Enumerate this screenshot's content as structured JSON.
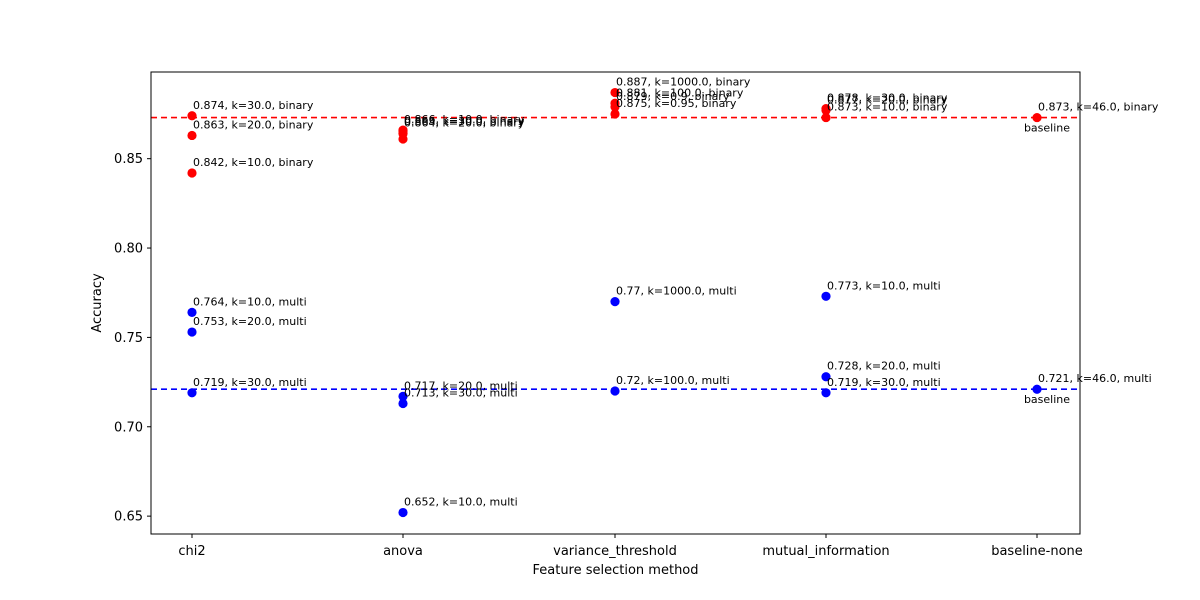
{
  "chart_data": {
    "type": "scatter",
    "title": "",
    "xlabel": "Feature selection method",
    "ylabel": "Accuracy",
    "categories": [
      "chi2",
      "anova",
      "variance_threshold",
      "mutual_information",
      "baseline-none"
    ],
    "ylim": [
      0.64,
      0.8985
    ],
    "yticks": [
      0.65,
      0.7,
      0.75,
      0.8,
      0.85
    ],
    "ytick_labels": [
      "0.65",
      "0.70",
      "0.75",
      "0.80",
      "0.85"
    ],
    "grid": false,
    "series": [
      {
        "color": "#ff0000",
        "points": [
          {
            "category": "chi2",
            "y": 0.874,
            "label": "0.874, k=30.0, binary"
          },
          {
            "category": "chi2",
            "y": 0.863,
            "label": "0.863, k=20.0, binary"
          },
          {
            "category": "chi2",
            "y": 0.842,
            "label": "0.842, k=10.0, binary"
          },
          {
            "category": "anova",
            "y": 0.866,
            "label": "0.866, k=10.0, binary"
          },
          {
            "category": "anova",
            "y": 0.865,
            "label": "0.865, k=30.0, binary"
          },
          {
            "category": "anova",
            "y": 0.864,
            "label": "0.864, k=20.0, binary"
          },
          {
            "category": "anova",
            "y": 0.861,
            "label": ""
          },
          {
            "category": "variance_threshold",
            "y": 0.887,
            "label": "0.887, k=1000.0, binary"
          },
          {
            "category": "variance_threshold",
            "y": 0.881,
            "label": "0.881, k=100.0, binary"
          },
          {
            "category": "variance_threshold",
            "y": 0.879,
            "label": "0.879, k=0.9, binary"
          },
          {
            "category": "variance_threshold",
            "y": 0.875,
            "label": "0.875, k=0.95, binary"
          },
          {
            "category": "mutual_information",
            "y": 0.878,
            "label": "0.878, k=30.0, binary"
          },
          {
            "category": "mutual_information",
            "y": 0.877,
            "label": "0.877, k=20.0, binary"
          },
          {
            "category": "mutual_information",
            "y": 0.873,
            "label": "0.873, k=10.0, binary"
          },
          {
            "category": "baseline-none",
            "y": 0.873,
            "label": "0.873, k=46.0, binary"
          }
        ]
      },
      {
        "color": "#0000ff",
        "points": [
          {
            "category": "chi2",
            "y": 0.764,
            "label": "0.764, k=10.0, multi"
          },
          {
            "category": "chi2",
            "y": 0.753,
            "label": "0.753, k=20.0, multi"
          },
          {
            "category": "chi2",
            "y": 0.719,
            "label": "0.719, k=30.0, multi"
          },
          {
            "category": "anova",
            "y": 0.717,
            "label": "0.717, k=20.0, multi"
          },
          {
            "category": "anova",
            "y": 0.713,
            "label": "0.713, k=30.0, multi"
          },
          {
            "category": "anova",
            "y": 0.652,
            "label": "0.652, k=10.0, multi"
          },
          {
            "category": "variance_threshold",
            "y": 0.77,
            "label": "0.77, k=1000.0, multi"
          },
          {
            "category": "variance_threshold",
            "y": 0.72,
            "label": "0.72, k=100.0, multi"
          },
          {
            "category": "mutual_information",
            "y": 0.773,
            "label": "0.773, k=10.0, multi"
          },
          {
            "category": "mutual_information",
            "y": 0.728,
            "label": "0.728, k=20.0, multi"
          },
          {
            "category": "mutual_information",
            "y": 0.719,
            "label": "0.719, k=30.0, multi"
          },
          {
            "category": "baseline-none",
            "y": 0.721,
            "label": "0.721, k=46.0, multi"
          }
        ]
      }
    ],
    "reference_lines": [
      {
        "y": 0.873,
        "color": "#ff0000",
        "style": "dashed",
        "label": "baseline"
      },
      {
        "y": 0.721,
        "color": "#0000ff",
        "style": "dashed",
        "label": "baseline"
      }
    ]
  }
}
